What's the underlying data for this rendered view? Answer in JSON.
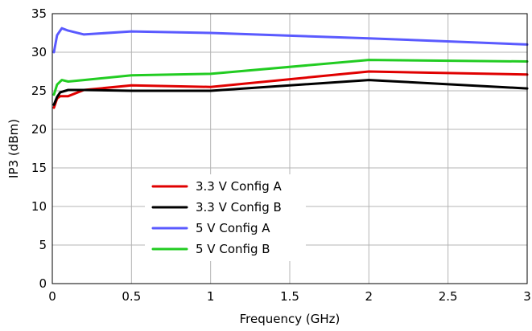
{
  "chart_data": {
    "type": "line",
    "title": "",
    "xlabel": "Frequency (GHz)",
    "ylabel": "IP3 (dBm)",
    "xlim": [
      0,
      3
    ],
    "ylim": [
      0,
      35
    ],
    "xticks": [
      0,
      0.5,
      1,
      1.5,
      2,
      2.5,
      3
    ],
    "xtick_labels": [
      "0",
      "0.5",
      "1",
      "1.5",
      "2",
      "2.5",
      "3"
    ],
    "yticks": [
      0,
      5,
      10,
      15,
      20,
      25,
      30,
      35
    ],
    "ytick_labels": [
      "0",
      "5",
      "10",
      "15",
      "20",
      "25",
      "30",
      "35"
    ],
    "grid": true,
    "legend_position": "lower-left",
    "series": [
      {
        "name": "3.3 V Config A",
        "color": "#e00000",
        "x": [
          0.01,
          0.03,
          0.05,
          0.1,
          0.2,
          0.5,
          1.0,
          2.0,
          3.0
        ],
        "y": [
          22.8,
          24.0,
          24.3,
          24.3,
          25.1,
          25.7,
          25.5,
          27.5,
          27.1
        ]
      },
      {
        "name": "3.3 V Config B",
        "color": "#000000",
        "x": [
          0.01,
          0.03,
          0.05,
          0.1,
          0.2,
          0.5,
          1.0,
          2.0,
          3.0
        ],
        "y": [
          23.2,
          24.2,
          24.8,
          25.1,
          25.1,
          25.0,
          25.0,
          26.4,
          25.3
        ]
      },
      {
        "name": "5 V Config A",
        "color": "#5a5aff",
        "x": [
          0.01,
          0.03,
          0.06,
          0.1,
          0.2,
          0.5,
          1.0,
          2.0,
          3.0
        ],
        "y": [
          30.0,
          32.2,
          33.1,
          32.8,
          32.3,
          32.7,
          32.5,
          31.8,
          31.0
        ]
      },
      {
        "name": "5 V Config B",
        "color": "#22cc22",
        "x": [
          0.01,
          0.03,
          0.06,
          0.1,
          0.2,
          0.5,
          1.0,
          2.0,
          3.0
        ],
        "y": [
          24.5,
          25.8,
          26.4,
          26.2,
          26.4,
          27.0,
          27.2,
          29.0,
          28.8
        ]
      }
    ]
  }
}
